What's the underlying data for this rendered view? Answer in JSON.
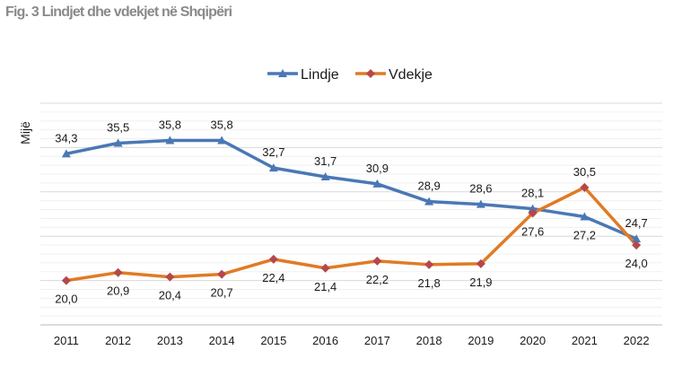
{
  "chart_data": {
    "type": "line",
    "title": "Fig. 3 Lindjet dhe vdekjet në Shqipëri",
    "xlabel": "",
    "ylabel": "Mijë",
    "categories": [
      "2011",
      "2012",
      "2013",
      "2014",
      "2015",
      "2016",
      "2017",
      "2018",
      "2019",
      "2020",
      "2021",
      "2022"
    ],
    "ylim": [
      15,
      40
    ],
    "grid": true,
    "legend_position": "top-center",
    "series": [
      {
        "name": "Lindje",
        "color": "#4a78b5",
        "marker": "triangle",
        "values": [
          34.3,
          35.5,
          35.8,
          35.8,
          32.7,
          31.7,
          30.9,
          28.9,
          28.6,
          28.1,
          27.2,
          24.7
        ],
        "labels": [
          "34,3",
          "35,5",
          "35,8",
          "35,8",
          "32,7",
          "31,7",
          "30,9",
          "28,9",
          "28,6",
          "28,1",
          "27,2",
          "24,7"
        ]
      },
      {
        "name": "Vdekje",
        "color": "#e07b24",
        "marker": "diamond",
        "marker_color": "#b5474b",
        "values": [
          20.0,
          20.9,
          20.4,
          20.7,
          22.4,
          21.4,
          22.2,
          21.8,
          21.9,
          27.6,
          30.5,
          24.0
        ],
        "labels": [
          "20,0",
          "20,9",
          "20,4",
          "20,7",
          "22,4",
          "21,4",
          "22,2",
          "21,8",
          "21,9",
          "27,6",
          "30,5",
          "24,0"
        ]
      }
    ]
  }
}
